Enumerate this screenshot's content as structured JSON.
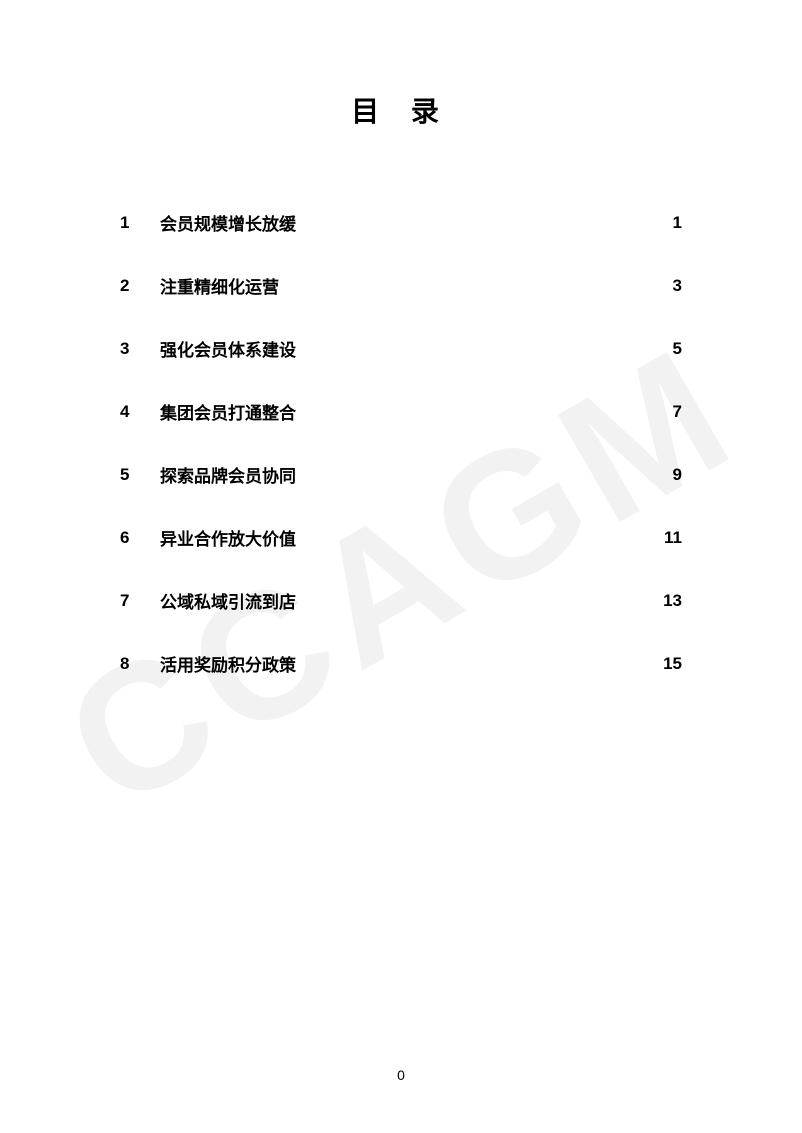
{
  "title": "目 录",
  "watermark": "CCAGM",
  "page_number": "0",
  "toc": {
    "items": [
      {
        "num": "1",
        "text": "会员规模增长放缓",
        "page": "1"
      },
      {
        "num": "2",
        "text": "注重精细化运营",
        "page": "3"
      },
      {
        "num": "3",
        "text": "强化会员体系建设",
        "page": "5"
      },
      {
        "num": "4",
        "text": "集团会员打通整合",
        "page": "7"
      },
      {
        "num": "5",
        "text": "探索品牌会员协同",
        "page": "9"
      },
      {
        "num": "6",
        "text": "异业合作放大价值",
        "page": "11"
      },
      {
        "num": "7",
        "text": "公域私域引流到店",
        "page": "13"
      },
      {
        "num": "8",
        "text": "活用奖励积分政策",
        "page": "15"
      }
    ]
  },
  "colors": {
    "background": "#ffffff",
    "text": "#000000",
    "watermark": "rgba(0,0,0,0.05)"
  },
  "typography": {
    "title_fontsize": 28,
    "toc_fontsize": 17,
    "pagenum_fontsize": 14,
    "font_family": "Microsoft YaHei"
  }
}
